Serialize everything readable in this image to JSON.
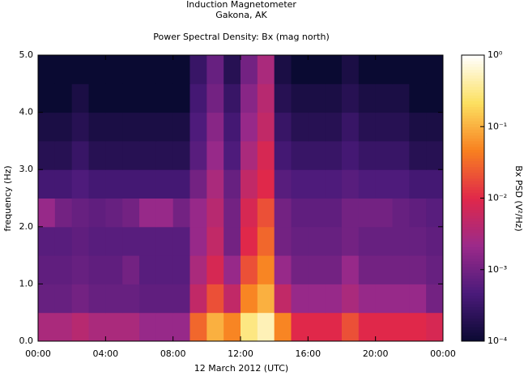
{
  "chart_data": {
    "type": "heatmap",
    "title": "Induction Magnetometer",
    "subtitle": "Gakona, AK",
    "plot_title": "Power Spectral Density: Bx (mag north)",
    "x_label": "12 March 2012 (UTC)",
    "y_label": "frequency (Hz)",
    "colorbar_label": "Bx PSD (V²/Hz)",
    "x": [
      0,
      1,
      2,
      3,
      4,
      5,
      6,
      7,
      8,
      9,
      10,
      11,
      12,
      13,
      14,
      15,
      16,
      17,
      18,
      19,
      20,
      21,
      22,
      23
    ],
    "y": [
      0,
      0.5,
      1,
      1.5,
      2,
      2.5,
      3,
      3.5,
      4,
      4.5
    ],
    "xlim": [
      0,
      24
    ],
    "ylim": [
      0,
      5
    ],
    "xticks": [
      {
        "value": 0,
        "label": "00:00"
      },
      {
        "value": 4,
        "label": "04:00"
      },
      {
        "value": 8,
        "label": "08:00"
      },
      {
        "value": 12,
        "label": "12:00"
      },
      {
        "value": 16,
        "label": "16:00"
      },
      {
        "value": 20,
        "label": "20:00"
      },
      {
        "value": 24,
        "label": "00:00"
      }
    ],
    "yticks": [
      {
        "value": 0,
        "label": "0.0"
      },
      {
        "value": 1,
        "label": "1.0"
      },
      {
        "value": 2,
        "label": "2.0"
      },
      {
        "value": 3,
        "label": "3.0"
      },
      {
        "value": 4,
        "label": "4.0"
      },
      {
        "value": 5,
        "label": "5.0"
      }
    ],
    "zscale": "log",
    "zlim": [
      0.0001,
      1
    ],
    "zticks": [
      {
        "value": 0.0001,
        "label": "10⁻⁴"
      },
      {
        "value": 0.001,
        "label": "10⁻³"
      },
      {
        "value": 0.01,
        "label": "10⁻²"
      },
      {
        "value": 0.1,
        "label": "10⁻¹"
      },
      {
        "value": 1,
        "label": "10⁰"
      }
    ],
    "colorscale": [
      "#0a0a32",
      "#4a1a7a",
      "#9b2a8a",
      "#e0284a",
      "#f88020",
      "#fce060",
      "#ffffff"
    ],
    "z": [
      [
        0.003,
        0.003,
        0.004,
        0.003,
        0.003,
        0.003,
        0.002,
        0.002,
        0.002,
        0.03,
        0.1,
        0.05,
        0.3,
        0.5,
        0.05,
        0.01,
        0.01,
        0.01,
        0.02,
        0.01,
        0.01,
        0.01,
        0.01,
        0.008
      ],
      [
        0.0008,
        0.0008,
        0.001,
        0.0008,
        0.0008,
        0.0008,
        0.0007,
        0.0007,
        0.0007,
        0.005,
        0.02,
        0.005,
        0.05,
        0.1,
        0.005,
        0.002,
        0.002,
        0.002,
        0.003,
        0.002,
        0.002,
        0.002,
        0.002,
        0.001
      ],
      [
        0.0007,
        0.0007,
        0.0008,
        0.0007,
        0.0007,
        0.001,
        0.0006,
        0.0006,
        0.0006,
        0.003,
        0.008,
        0.002,
        0.02,
        0.05,
        0.002,
        0.001,
        0.001,
        0.001,
        0.002,
        0.001,
        0.001,
        0.001,
        0.001,
        0.0008
      ],
      [
        0.0006,
        0.0006,
        0.0007,
        0.0006,
        0.0006,
        0.0006,
        0.0006,
        0.0006,
        0.0006,
        0.002,
        0.005,
        0.001,
        0.01,
        0.03,
        0.001,
        0.0008,
        0.0008,
        0.0008,
        0.001,
        0.0008,
        0.0008,
        0.0008,
        0.0008,
        0.0007
      ],
      [
        0.002,
        0.001,
        0.0008,
        0.0007,
        0.0008,
        0.001,
        0.002,
        0.002,
        0.001,
        0.002,
        0.004,
        0.001,
        0.008,
        0.02,
        0.001,
        0.0007,
        0.0007,
        0.0007,
        0.001,
        0.001,
        0.001,
        0.0008,
        0.0007,
        0.0006
      ],
      [
        0.0004,
        0.0004,
        0.0005,
        0.0004,
        0.0004,
        0.0004,
        0.0004,
        0.0004,
        0.0004,
        0.001,
        0.003,
        0.0008,
        0.005,
        0.01,
        0.0006,
        0.0005,
        0.0005,
        0.0005,
        0.0006,
        0.0005,
        0.0005,
        0.0005,
        0.0004,
        0.0004
      ],
      [
        0.0002,
        0.0002,
        0.0003,
        0.0002,
        0.0002,
        0.0002,
        0.0002,
        0.0002,
        0.0002,
        0.0006,
        0.002,
        0.0005,
        0.003,
        0.008,
        0.0004,
        0.0003,
        0.0003,
        0.0003,
        0.0004,
        0.0003,
        0.0003,
        0.0003,
        0.0002,
        0.0002
      ],
      [
        0.00015,
        0.00015,
        0.0002,
        0.00015,
        0.00015,
        0.00015,
        0.00015,
        0.00015,
        0.00015,
        0.0005,
        0.0015,
        0.0004,
        0.002,
        0.005,
        0.0003,
        0.0002,
        0.0002,
        0.0002,
        0.0003,
        0.0002,
        0.0002,
        0.0002,
        0.00015,
        0.00015
      ],
      [
        0.0001,
        0.0001,
        0.00015,
        0.0001,
        0.0001,
        0.0001,
        0.0001,
        0.0001,
        0.0001,
        0.0004,
        0.001,
        0.0003,
        0.0015,
        0.004,
        0.0002,
        0.00015,
        0.00015,
        0.00015,
        0.0002,
        0.00015,
        0.00015,
        0.00015,
        0.0001,
        0.0001
      ],
      [
        0.0001,
        0.0001,
        0.0001,
        0.0001,
        0.0001,
        0.0001,
        0.0001,
        0.0001,
        0.0001,
        0.0003,
        0.0008,
        0.0002,
        0.001,
        0.003,
        0.00015,
        0.0001,
        0.0001,
        0.0001,
        0.00015,
        0.0001,
        0.0001,
        0.0001,
        0.0001,
        0.0001
      ]
    ]
  }
}
